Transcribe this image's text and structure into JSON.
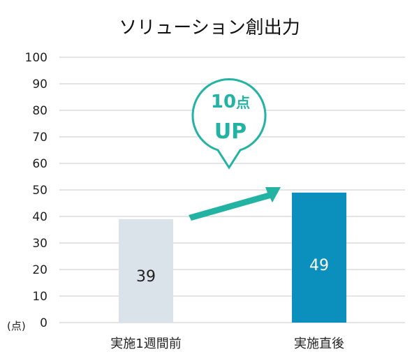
{
  "chart_data": {
    "type": "bar",
    "title": "ソリューション創出力",
    "categories": [
      "実施1週間前",
      "実施直後"
    ],
    "values": [
      39,
      49
    ],
    "ylim": [
      0,
      100
    ],
    "yticks": [
      0,
      10,
      20,
      30,
      40,
      50,
      60,
      70,
      80,
      90,
      100
    ],
    "yunit": "(点)",
    "grid": true,
    "bar_colors": [
      "#dbe3ea",
      "#0b8fbd"
    ],
    "bar_label_colors": [
      "#222222",
      "#ffffff"
    ],
    "grid_color": "#c8c8c8",
    "callout": {
      "value": "10",
      "unit": "点",
      "text": "UP",
      "color": "#22b3a2"
    },
    "arrow_color": "#22b3a2"
  }
}
